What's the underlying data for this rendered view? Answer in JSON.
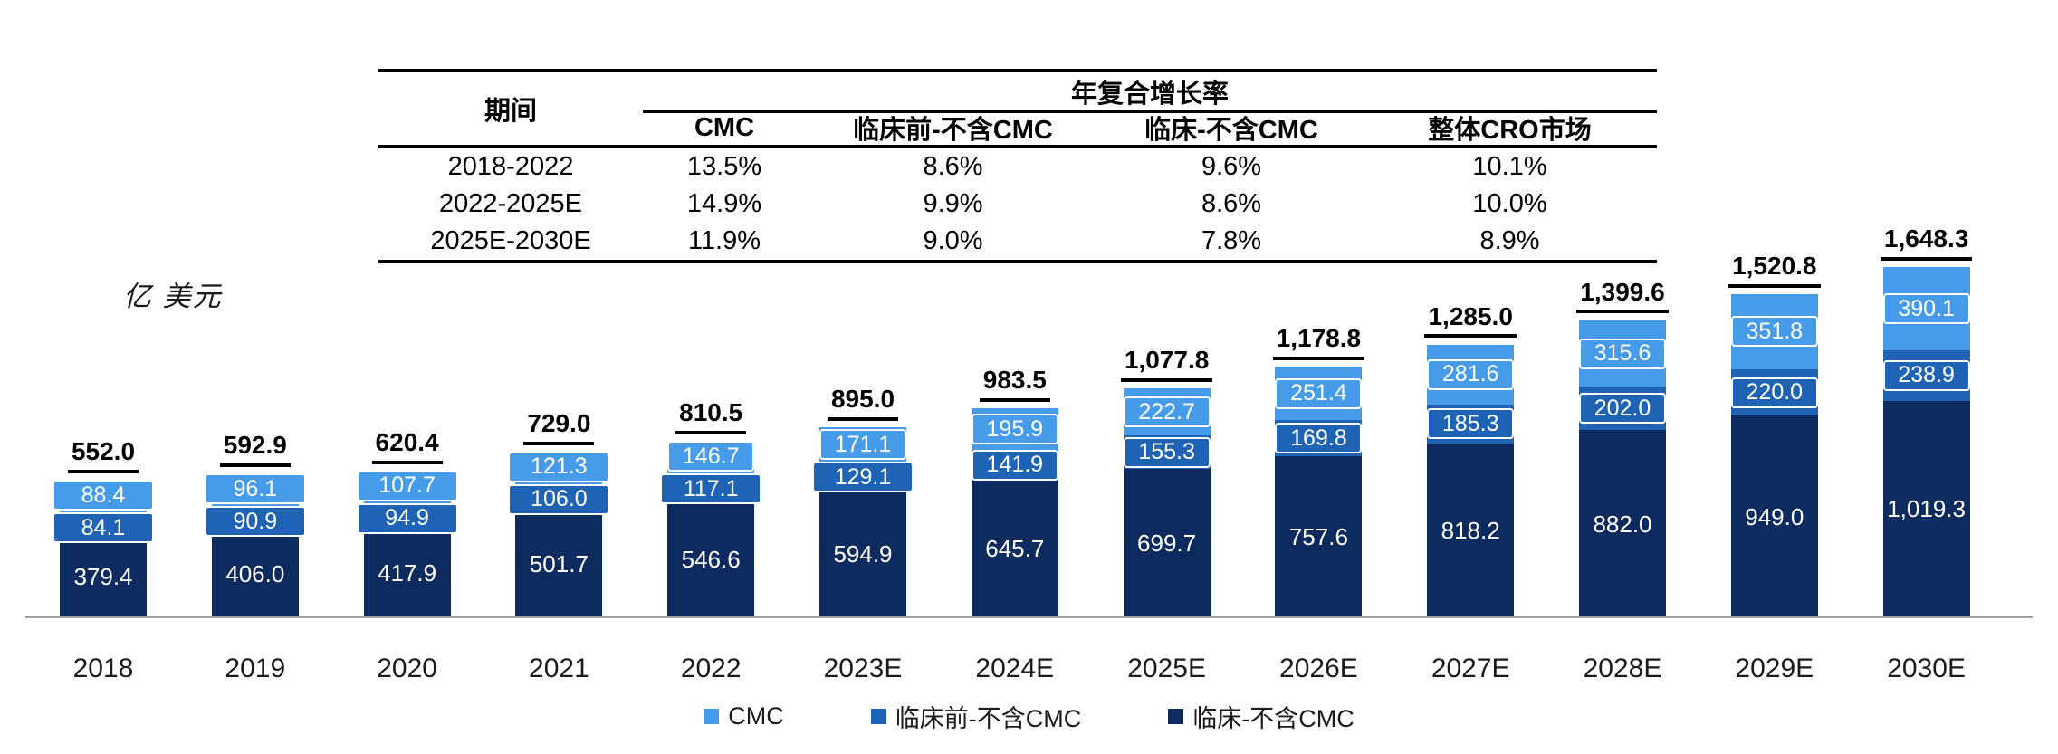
{
  "table": {
    "period_header": "期间",
    "span_header": "年复合增长率",
    "columns": [
      "CMC",
      "临床前-不含CMC",
      "临床-不含CMC",
      "整体CRO市场"
    ],
    "rows": [
      {
        "period": "2018-2022",
        "values": [
          "13.5%",
          "8.6%",
          "9.6%",
          "10.1%"
        ]
      },
      {
        "period": "2022-2025E",
        "values": [
          "14.9%",
          "9.9%",
          "8.6%",
          "10.0%"
        ]
      },
      {
        "period": "2025E-2030E",
        "values": [
          "11.9%",
          "9.0%",
          "7.8%",
          "8.9%"
        ]
      }
    ]
  },
  "unit_label": "亿 美元",
  "chart_data": {
    "type": "bar",
    "stacked": true,
    "title": "",
    "xlabel": "",
    "ylabel": "亿 美元",
    "grid": false,
    "legend_position": "bottom",
    "categories": [
      "2018",
      "2019",
      "2020",
      "2021",
      "2022",
      "2023E",
      "2024E",
      "2025E",
      "2026E",
      "2027E",
      "2028E",
      "2029E",
      "2030E"
    ],
    "totals": [
      "552.0",
      "592.9",
      "620.4",
      "729.0",
      "810.5",
      "895.0",
      "983.5",
      "1,077.8",
      "1,178.8",
      "1,285.0",
      "1,399.6",
      "1,520.8",
      "1,648.3"
    ],
    "series": [
      {
        "name": "CMC",
        "color": "#469CE9",
        "values": [
          88.4,
          96.1,
          107.7,
          121.3,
          146.7,
          171.1,
          195.9,
          222.7,
          251.4,
          281.6,
          315.6,
          351.8,
          390.1
        ],
        "labels": [
          "88.4",
          "96.1",
          "107.7",
          "121.3",
          "146.7",
          "171.1",
          "195.9",
          "222.7",
          "251.4",
          "281.6",
          "315.6",
          "351.8",
          "390.1"
        ]
      },
      {
        "name": "临床前-不含CMC",
        "color": "#1F64B4",
        "values": [
          84.1,
          90.9,
          94.9,
          106.0,
          117.1,
          129.1,
          141.9,
          155.3,
          169.8,
          185.3,
          202.0,
          220.0,
          238.9
        ],
        "labels": [
          "84.1",
          "90.9",
          "94.9",
          "106.0",
          "117.1",
          "129.1",
          "141.9",
          "155.3",
          "169.8",
          "185.3",
          "202.0",
          "220.0",
          "238.9"
        ]
      },
      {
        "name": "临床-不含CMC",
        "color": "#0E2B60",
        "values": [
          379.4,
          406.0,
          417.9,
          501.7,
          546.6,
          594.9,
          645.7,
          699.7,
          757.6,
          818.2,
          882.0,
          949.0,
          1019.3
        ],
        "labels": [
          "379.4",
          "406.0",
          "417.9",
          "501.7",
          "546.6",
          "594.9",
          "645.7",
          "699.7",
          "757.6",
          "818.2",
          "882.0",
          "949.0",
          "1,019.3"
        ]
      }
    ]
  },
  "legend": [
    {
      "label": "CMC",
      "color": "#469CE9"
    },
    {
      "label": "临床前-不含CMC",
      "color": "#1F64B4"
    },
    {
      "label": "临床-不含CMC",
      "color": "#0E2B60"
    }
  ],
  "colors": {
    "axis_line": "#9e9e9e",
    "table_border": "#000000"
  }
}
